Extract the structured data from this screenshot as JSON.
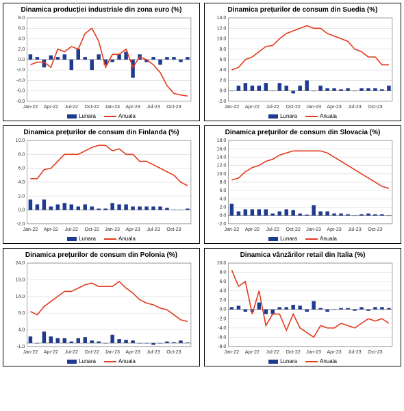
{
  "layout": {
    "rows": 3,
    "cols": 2
  },
  "common": {
    "x_labels": [
      "Jan-22",
      "Apr-22",
      "Jul-22",
      "Oct-22",
      "Jan-23",
      "Apr-23",
      "Jul-23",
      "Oct-23"
    ],
    "x_label_every": 3,
    "n_points": 24,
    "bar_color": "#1f3b8f",
    "line_color": "#e23c1f",
    "grid_color": "#d8d8d8",
    "axis_color": "#666666",
    "bg_color": "#ffffff",
    "title_fontsize": 10,
    "tick_fontsize": 7,
    "legend_fontsize": 8,
    "line_width": 1.6,
    "bar_width": 0.55,
    "legend_bar_label": "Lunara",
    "legend_line_label": "Anuala"
  },
  "panels": [
    {
      "title": "Dinamica producției industriale din zona euro (%)",
      "ylim": [
        -8,
        8
      ],
      "ytick_step": 2,
      "bars": [
        1.0,
        0.5,
        -1.5,
        0.8,
        0.5,
        1.0,
        -2.0,
        2.0,
        0.5,
        -2.0,
        1.0,
        -1.0,
        -0.5,
        1.0,
        1.5,
        -3.5,
        1.0,
        -0.5,
        0.5,
        -1.0,
        0.5,
        0.5,
        -0.5,
        0.5
      ],
      "line": [
        -1.0,
        -0.5,
        -0.5,
        -1.5,
        2.0,
        1.5,
        2.5,
        2.0,
        5.0,
        6.0,
        3.5,
        -1.5,
        1.0,
        1.0,
        2.0,
        -1.5,
        0.5,
        0.0,
        -1.0,
        -2.5,
        -5.0,
        -6.5,
        -6.8,
        -7.0
      ]
    },
    {
      "title": "Dinamica prețurilor de consum din Suedia (%)",
      "ylim": [
        -2,
        14
      ],
      "ytick_step": 2,
      "bars": [
        0.0,
        1.0,
        1.5,
        1.0,
        1.0,
        1.5,
        0.0,
        1.5,
        1.0,
        -0.5,
        1.0,
        2.0,
        0.0,
        1.0,
        0.5,
        0.5,
        0.3,
        0.5,
        0.0,
        0.5,
        0.5,
        0.5,
        0.3,
        1.0
      ],
      "line": [
        4.0,
        4.5,
        6.0,
        6.5,
        7.5,
        8.5,
        8.7,
        10.0,
        11.0,
        11.5,
        12.0,
        12.5,
        12.0,
        12.0,
        11.0,
        10.5,
        10.0,
        9.5,
        8.0,
        7.5,
        6.5,
        6.5,
        5.0,
        5.0
      ]
    },
    {
      "title": "Dinamica prețurilor de consum din Finlanda (%)",
      "ylim": [
        -2,
        10
      ],
      "ytick_step": 2,
      "bars": [
        1.5,
        0.8,
        1.5,
        0.5,
        0.8,
        1.0,
        0.8,
        0.5,
        0.8,
        0.5,
        0.2,
        0.2,
        1.0,
        0.8,
        0.8,
        0.5,
        0.5,
        0.5,
        0.5,
        0.5,
        0.3,
        0.0,
        0.0,
        0.2
      ],
      "line": [
        4.5,
        4.5,
        5.8,
        6.0,
        7.0,
        8.0,
        8.0,
        8.0,
        8.5,
        9.0,
        9.3,
        9.3,
        8.5,
        8.8,
        8.0,
        8.0,
        7.0,
        7.0,
        6.5,
        6.0,
        5.5,
        5.0,
        4.0,
        3.5
      ]
    },
    {
      "title": "Dinamica prețurilor de consum din Slovacia (%)",
      "ylim": [
        -2,
        18
      ],
      "ytick_step": 2,
      "bars": [
        2.8,
        1.0,
        1.5,
        1.5,
        1.5,
        1.5,
        0.5,
        1.0,
        1.5,
        1.3,
        0.5,
        0.2,
        2.5,
        1.0,
        1.0,
        0.5,
        0.5,
        0.3,
        0.0,
        0.3,
        0.5,
        0.3,
        0.3,
        0.0
      ],
      "line": [
        8.5,
        9.0,
        10.5,
        11.5,
        12.0,
        13.0,
        13.5,
        14.5,
        15.0,
        15.5,
        15.5,
        15.5,
        15.5,
        15.5,
        15.0,
        14.0,
        13.0,
        12.0,
        11.0,
        10.0,
        9.0,
        8.0,
        7.0,
        6.5
      ]
    },
    {
      "title": "Dinamica prețurilor de consum din Polonia (%)",
      "ylim": [
        -1,
        24
      ],
      "ytick_step": 5,
      "bars": [
        2.0,
        0.0,
        3.5,
        2.0,
        1.5,
        1.5,
        0.5,
        1.5,
        1.8,
        0.8,
        0.5,
        0.0,
        2.5,
        1.2,
        1.0,
        0.8,
        0.0,
        0.0,
        -0.5,
        0.0,
        0.5,
        0.3,
        0.8,
        0.2
      ],
      "line": [
        9.5,
        8.5,
        11.0,
        12.5,
        14.0,
        15.5,
        15.5,
        16.5,
        17.5,
        18.0,
        17.0,
        17.0,
        17.0,
        18.5,
        16.5,
        15.0,
        13.0,
        12.0,
        11.5,
        10.5,
        10.0,
        8.5,
        7.0,
        6.5
      ]
    },
    {
      "title": "Dinamica vânzărilor retail din Italia (%)",
      "ylim": [
        -8,
        10
      ],
      "ytick_step": 2,
      "bars": [
        0.5,
        0.8,
        -0.5,
        -0.5,
        1.5,
        -1.0,
        -1.0,
        0.5,
        0.5,
        1.0,
        0.8,
        -0.5,
        1.8,
        0.3,
        -0.5,
        0.0,
        0.3,
        0.3,
        -0.3,
        0.5,
        -0.3,
        0.5,
        0.5,
        0.3
      ],
      "line": [
        8.5,
        5.0,
        6.0,
        -1.0,
        4.0,
        -3.5,
        -1.0,
        -1.0,
        -4.5,
        -1.0,
        -4.0,
        -5.0,
        -6.0,
        -3.5,
        -4.0,
        -4.0,
        -3.0,
        -3.5,
        -4.0,
        -3.0,
        -2.0,
        -2.5,
        -2.0,
        -3.0
      ]
    }
  ]
}
